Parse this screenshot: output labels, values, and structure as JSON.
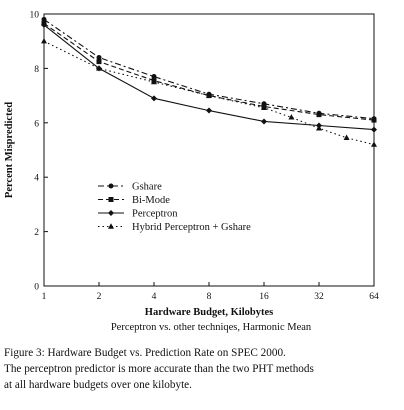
{
  "chart_data": {
    "type": "line",
    "title": "Perceptron vs. other techniqes, Harmonic Mean",
    "xlabel": "Hardware Budget, Kilobytes",
    "ylabel": "Percent Mispredicted",
    "x_scale": "log2",
    "categories": [
      "1",
      "2",
      "4",
      "8",
      "16",
      "32",
      "64"
    ],
    "x": [
      1,
      2,
      4,
      8,
      16,
      32,
      64
    ],
    "ylim": [
      0,
      10
    ],
    "yticks": [
      "0",
      "2",
      "4",
      "6",
      "8",
      "10"
    ],
    "grid": false,
    "legend_position": "middle-left",
    "series": [
      {
        "name": "Gshare",
        "marker": "circle",
        "dash": "6,3,2,3",
        "values": [
          9.8,
          8.4,
          7.7,
          7.05,
          6.7,
          6.35,
          6.15
        ]
      },
      {
        "name": "Bi-Mode",
        "marker": "square",
        "dash": "5,3",
        "values": [
          9.65,
          8.25,
          7.55,
          7.0,
          6.6,
          6.3,
          6.1
        ]
      },
      {
        "name": "Perceptron",
        "marker": "diamond",
        "dash": "",
        "values": [
          9.6,
          8.0,
          6.9,
          6.45,
          6.05,
          5.9,
          5.75
        ]
      },
      {
        "name": "Hybrid Perceptron + Gshare",
        "marker": "triangle",
        "dash": "1.5,3",
        "values": [
          9.0,
          8.0,
          7.5,
          7.0,
          6.55,
          6.2,
          5.8,
          5.45,
          5.2
        ],
        "x": [
          1,
          2,
          4,
          8,
          16,
          22.6,
          32,
          45.3,
          64
        ]
      }
    ]
  },
  "caption": {
    "lines": [
      "Figure 3:   Hardware Budget vs. Prediction Rate on SPEC 2000.",
      "The perceptron predictor is more accurate than the two PHT methods",
      "at all hardware budgets over one kilobyte."
    ]
  }
}
